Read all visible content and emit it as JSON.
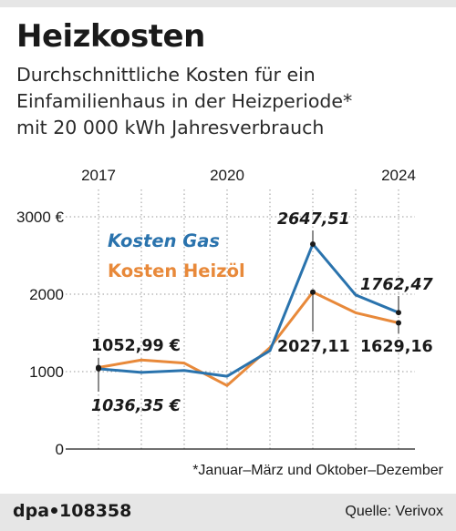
{
  "header": {
    "title": "Heizkosten",
    "subtitle_lines": [
      "Durchschnittliche Kosten für ein",
      "Einfamilienhaus in der Heizperiode*",
      "mit 20 000 kWh Jahresverbrauch"
    ]
  },
  "chart_data": {
    "type": "line",
    "x": [
      2017,
      2018,
      2019,
      2020,
      2021,
      2022,
      2023,
      2024
    ],
    "x_tick_labels": [
      "2017",
      "2020",
      "2024"
    ],
    "x_tick_values": [
      2017,
      2020,
      2024
    ],
    "ylim": [
      0,
      3000
    ],
    "y_ticks": [
      {
        "value": 0,
        "label": "0"
      },
      {
        "value": 1000,
        "label": "1000"
      },
      {
        "value": 2000,
        "label": "2000"
      },
      {
        "value": 3000,
        "label": "3000 €"
      }
    ],
    "grid": true,
    "series": [
      {
        "name": "Kosten Gas",
        "color": "#2a73ad",
        "values": [
          1036.35,
          990,
          1015,
          940,
          1270,
          2647.51,
          1990,
          1762.47
        ]
      },
      {
        "name": "Kosten Heizöl",
        "color": "#e8893a",
        "values": [
          1052.99,
          1150,
          1110,
          820,
          1310,
          2027.11,
          1760,
          1629.16
        ]
      }
    ],
    "annotations": [
      {
        "text": "1052,99 €",
        "series": 1,
        "x": 2017,
        "y": 1052.99,
        "bold": true,
        "italic": false
      },
      {
        "text": "1036,35 €",
        "series": 0,
        "x": 2017,
        "y": 1036.35,
        "bold": true,
        "italic": true
      },
      {
        "text": "2647,51",
        "series": 0,
        "x": 2022,
        "y": 2647.51,
        "bold": true,
        "italic": true
      },
      {
        "text": "2027,11",
        "series": 1,
        "x": 2022,
        "y": 2027.11,
        "bold": true,
        "italic": false
      },
      {
        "text": "1762,47",
        "series": 0,
        "x": 2024,
        "y": 1762.47,
        "bold": true,
        "italic": true
      },
      {
        "text": "1629,16",
        "series": 1,
        "x": 2024,
        "y": 1629.16,
        "bold": true,
        "italic": false
      }
    ],
    "legend_position": "upper-left"
  },
  "footnote": "*Januar–März und Oktober–Dezember",
  "footer": {
    "brand": "dpa",
    "number": "108358",
    "source": "Quelle: Verivox"
  }
}
